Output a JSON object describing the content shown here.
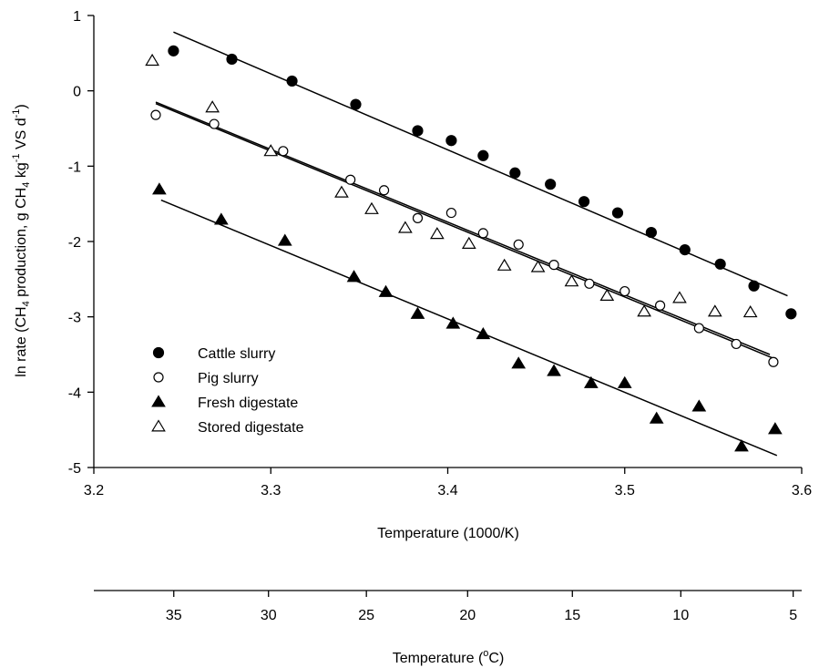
{
  "chart_data": {
    "type": "scatter",
    "xlabel": "Temperature (1000/K)",
    "xlabel2_pre": "Temperature (",
    "xlabel2_sup": "o",
    "xlabel2_post": "C)",
    "ylabel_parts": [
      {
        "t": "ln rate (CH",
        "s": "n"
      },
      {
        "t": "4",
        "s": "sub"
      },
      {
        "t": " production, g CH",
        "s": "n"
      },
      {
        "t": "4",
        "s": "sub"
      },
      {
        "t": " kg",
        "s": "n"
      },
      {
        "t": "-1",
        "s": "sup"
      },
      {
        "t": " VS d",
        "s": "n"
      },
      {
        "t": "-1",
        "s": "sup"
      },
      {
        "t": ")",
        "s": "n"
      }
    ],
    "xlim": [
      3.2,
      3.6
    ],
    "ylim": [
      -5,
      1
    ],
    "xticks": [
      "3.2",
      "3.3",
      "3.4",
      "3.5",
      "3.6"
    ],
    "yticks": [
      "1",
      "0",
      "-1",
      "-2",
      "-3",
      "-4",
      "-5"
    ],
    "celsius_ticks": [
      "35",
      "30",
      "25",
      "20",
      "15",
      "10",
      "5"
    ],
    "grid": false,
    "legend_position": "bottom-left",
    "series": [
      {
        "name": "Cattle slurry",
        "marker": "circle-filled",
        "points": [
          [
            3.245,
            0.53
          ],
          [
            3.278,
            0.42
          ],
          [
            3.312,
            0.13
          ],
          [
            3.348,
            -0.18
          ],
          [
            3.383,
            -0.53
          ],
          [
            3.402,
            -0.66
          ],
          [
            3.42,
            -0.86
          ],
          [
            3.438,
            -1.09
          ],
          [
            3.458,
            -1.24
          ],
          [
            3.477,
            -1.47
          ],
          [
            3.496,
            -1.62
          ],
          [
            3.515,
            -1.88
          ],
          [
            3.534,
            -2.11
          ],
          [
            3.554,
            -2.3
          ],
          [
            3.573,
            -2.59
          ],
          [
            3.594,
            -2.96
          ]
        ],
        "fit": [
          [
            3.245,
            0.78
          ],
          [
            3.592,
            -2.72
          ]
        ]
      },
      {
        "name": "Pig slurry",
        "marker": "circle-open",
        "points": [
          [
            3.235,
            -0.32
          ],
          [
            3.268,
            -0.44
          ],
          [
            3.307,
            -0.8
          ],
          [
            3.345,
            -1.18
          ],
          [
            3.364,
            -1.32
          ],
          [
            3.383,
            -1.69
          ],
          [
            3.402,
            -1.62
          ],
          [
            3.42,
            -1.89
          ],
          [
            3.44,
            -2.04
          ],
          [
            3.46,
            -2.31
          ],
          [
            3.48,
            -2.56
          ],
          [
            3.5,
            -2.66
          ],
          [
            3.52,
            -2.85
          ],
          [
            3.542,
            -3.15
          ],
          [
            3.563,
            -3.36
          ],
          [
            3.584,
            -3.6
          ]
        ],
        "fit": [
          [
            3.235,
            -0.17
          ],
          [
            3.584,
            -3.55
          ]
        ]
      },
      {
        "name": "Fresh digestate",
        "marker": "triangle-filled",
        "points": [
          [
            3.237,
            -1.31
          ],
          [
            3.272,
            -1.71
          ],
          [
            3.308,
            -1.99
          ],
          [
            3.347,
            -2.47
          ],
          [
            3.365,
            -2.67
          ],
          [
            3.383,
            -2.96
          ],
          [
            3.403,
            -3.09
          ],
          [
            3.42,
            -3.23
          ],
          [
            3.44,
            -3.62
          ],
          [
            3.46,
            -3.72
          ],
          [
            3.481,
            -3.88
          ],
          [
            3.5,
            -3.88
          ],
          [
            3.518,
            -4.35
          ],
          [
            3.542,
            -4.19
          ],
          [
            3.566,
            -4.72
          ],
          [
            3.585,
            -4.49
          ]
        ],
        "fit": [
          [
            3.238,
            -1.45
          ],
          [
            3.586,
            -4.84
          ]
        ]
      },
      {
        "name": "Stored digestate",
        "marker": "triangle-open",
        "points": [
          [
            3.233,
            0.4
          ],
          [
            3.267,
            -0.22
          ],
          [
            3.3,
            -0.8
          ],
          [
            3.34,
            -1.35
          ],
          [
            3.357,
            -1.57
          ],
          [
            3.376,
            -1.82
          ],
          [
            3.394,
            -1.9
          ],
          [
            3.412,
            -2.03
          ],
          [
            3.432,
            -2.32
          ],
          [
            3.451,
            -2.34
          ],
          [
            3.47,
            -2.53
          ],
          [
            3.49,
            -2.72
          ],
          [
            3.511,
            -2.93
          ],
          [
            3.531,
            -2.75
          ],
          [
            3.551,
            -2.93
          ],
          [
            3.571,
            -2.94
          ]
        ],
        "fit": [
          [
            3.235,
            -0.15
          ],
          [
            3.582,
            -3.5
          ]
        ]
      }
    ]
  }
}
